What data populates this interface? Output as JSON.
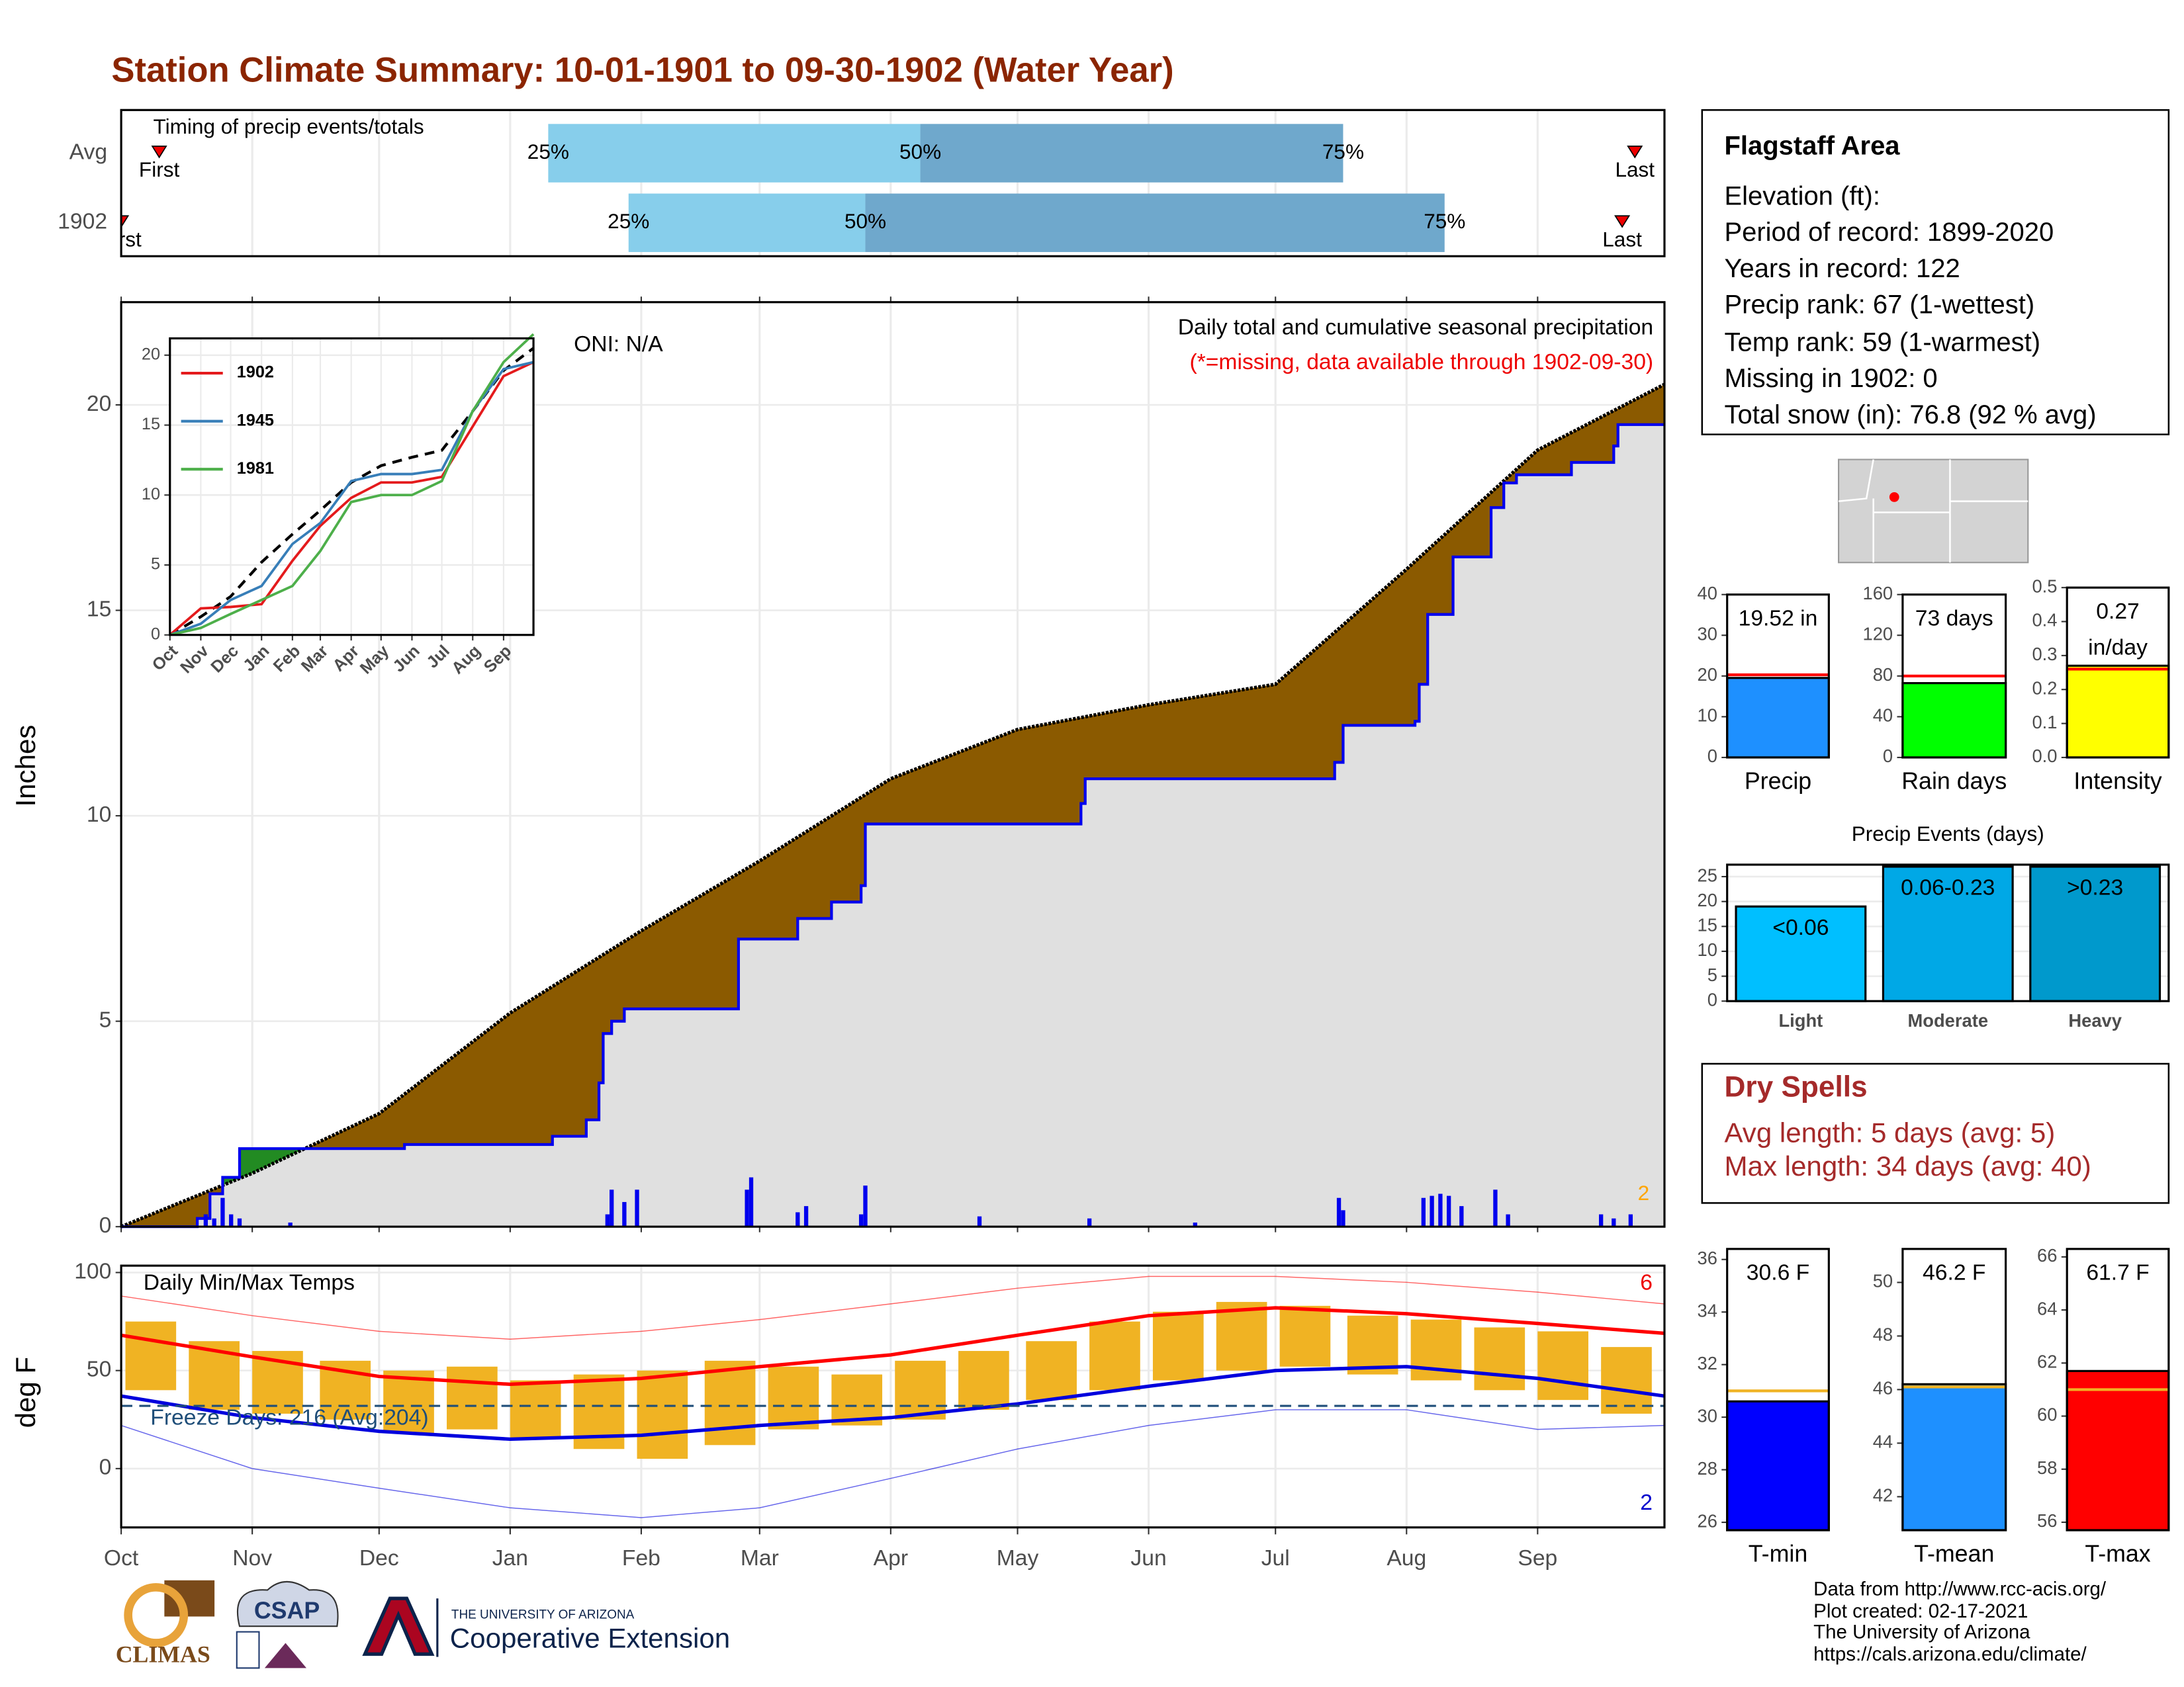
{
  "title": "Station Climate Summary: 10-01-1901 to 09-30-1902 (Water Year)",
  "chart_data": [
    {
      "type": "range_bar",
      "title": "Timing of precip events/totals",
      "categories": [
        "Avg",
        "1902"
      ],
      "first": [
        9,
        0
      ],
      "q25": [
        101,
        120
      ],
      "q50": [
        189,
        176
      ],
      "q75": [
        289,
        313
      ],
      "last": [
        358,
        355
      ],
      "labels": {
        "first": "First",
        "last": "Last",
        "q25": "25%",
        "q50": "50%",
        "q75": "75%"
      },
      "colors": [
        "#87ceeb",
        "#6fa8cc"
      ],
      "marker_color": "#ee0000",
      "xlim": [
        0,
        365
      ],
      "xticks": [
        0,
        31,
        61,
        92,
        123,
        151,
        182,
        212,
        243,
        273,
        304,
        335
      ],
      "grid": true
    },
    {
      "type": "area",
      "ylabel": "Inches",
      "annotations": [
        "ONI: N/A",
        "Daily total and cumulative seasonal precipitation",
        "(*=missing, data available through 1902-09-30)"
      ],
      "record_count": 2,
      "xlim": [
        0,
        365
      ],
      "ylim": [
        0,
        22.5
      ],
      "yticks": [
        0,
        5,
        10,
        15,
        20
      ],
      "xticks": [
        0,
        31,
        61,
        92,
        123,
        151,
        182,
        212,
        243,
        273,
        304,
        335
      ],
      "grid": true,
      "average": {
        "x": [
          0,
          31,
          61,
          92,
          123,
          151,
          182,
          212,
          243,
          273,
          304,
          335,
          365
        ],
        "values": [
          0,
          1.3,
          2.75,
          5.2,
          7.2,
          8.9,
          10.9,
          12.1,
          12.7,
          13.2,
          16.0,
          18.9,
          20.5
        ],
        "color": "#8b5a00"
      },
      "year": {
        "x": [
          0,
          18,
          18,
          21,
          21,
          24,
          24,
          28,
          28,
          67,
          67,
          102,
          102,
          110,
          110,
          113,
          113,
          114,
          114,
          116,
          116,
          119,
          119,
          146,
          146,
          160,
          160,
          168,
          168,
          175,
          175,
          176,
          176,
          227,
          227,
          228,
          228,
          287,
          287,
          289,
          289,
          306,
          306,
          307,
          307,
          309,
          309,
          315,
          315,
          324,
          324,
          327,
          327,
          330,
          330,
          343,
          343,
          353,
          353,
          354,
          354,
          365
        ],
        "values": [
          0,
          0,
          0.2,
          0.2,
          0.8,
          0.8,
          1.2,
          1.2,
          1.9,
          1.9,
          2.0,
          2.0,
          2.2,
          2.2,
          2.6,
          2.6,
          3.5,
          3.5,
          4.7,
          4.7,
          5.0,
          5.0,
          5.3,
          5.3,
          7.0,
          7.0,
          7.5,
          7.5,
          7.9,
          7.9,
          8.3,
          8.3,
          9.8,
          9.8,
          10.3,
          10.3,
          10.9,
          10.9,
          11.3,
          11.3,
          12.2,
          12.2,
          12.3,
          12.3,
          13.2,
          13.2,
          14.9,
          14.9,
          16.3,
          16.3,
          17.5,
          17.5,
          18.1,
          18.1,
          18.3,
          18.3,
          18.6,
          18.6,
          19.0,
          19.0,
          19.52,
          19.52
        ],
        "color": "#0000ee"
      },
      "above_color": "#228b22",
      "below_color": "#e0e0e0",
      "daily": {
        "x": [
          20,
          22,
          24,
          26,
          28,
          40,
          115,
          116,
          119,
          122,
          148,
          149,
          160,
          162,
          175,
          176,
          203,
          229,
          254,
          288,
          289,
          308,
          310,
          312,
          314,
          317,
          325,
          328,
          350,
          353,
          357
        ],
        "values": [
          0.3,
          0.2,
          0.7,
          0.3,
          0.2,
          0.1,
          0.3,
          0.9,
          0.6,
          0.9,
          0.9,
          1.2,
          0.35,
          0.5,
          0.3,
          1.0,
          0.25,
          0.2,
          0.1,
          0.7,
          0.4,
          0.7,
          0.75,
          0.8,
          0.75,
          0.5,
          0.9,
          0.3,
          0.3,
          0.2,
          0.3
        ],
        "color": "#0000ee"
      }
    },
    {
      "type": "line",
      "x": [
        0,
        31,
        61,
        92,
        123,
        151,
        182,
        212,
        243,
        273,
        304,
        335,
        365
      ],
      "xlim": [
        0,
        365
      ],
      "ylim": [
        0,
        21.2
      ],
      "yticks": [
        0,
        5,
        10,
        15,
        20
      ],
      "xticks": [
        {
          "value": 0,
          "label": "Oct"
        },
        {
          "value": 31,
          "label": "Nov"
        },
        {
          "value": 61,
          "label": "Dec"
        },
        {
          "value": 92,
          "label": "Jan"
        },
        {
          "value": 123,
          "label": "Feb"
        },
        {
          "value": 151,
          "label": "Mar"
        },
        {
          "value": 182,
          "label": "Apr"
        },
        {
          "value": 212,
          "label": "May"
        },
        {
          "value": 243,
          "label": "Jun"
        },
        {
          "value": 273,
          "label": "Jul"
        },
        {
          "value": 304,
          "label": "Aug"
        },
        {
          "value": 335,
          "label": "Sep"
        }
      ],
      "average": {
        "values": [
          0,
          1.3,
          2.75,
          5.2,
          7.2,
          8.9,
          10.9,
          12.1,
          12.7,
          13.2,
          16.0,
          18.9,
          20.5
        ],
        "color": "#000000"
      },
      "series": [
        {
          "name": "1902",
          "color": "#e41a1c",
          "values": [
            0,
            1.9,
            2.0,
            2.2,
            5.3,
            7.8,
            9.8,
            10.9,
            10.9,
            11.3,
            14.9,
            18.5,
            19.5
          ]
        },
        {
          "name": "1945",
          "color": "#377eb8",
          "values": [
            0,
            0.8,
            2.5,
            3.5,
            6.5,
            8.0,
            11.0,
            11.5,
            11.5,
            11.8,
            16.0,
            19.0,
            19.5
          ]
        },
        {
          "name": "1981",
          "color": "#4daf4a",
          "values": [
            0,
            0.5,
            1.5,
            2.5,
            3.5,
            6.0,
            9.5,
            10.0,
            10.0,
            11.0,
            16.0,
            19.5,
            21.5
          ]
        }
      ]
    },
    {
      "type": "bar",
      "categories": [
        "Precip"
      ],
      "values": [
        19.52
      ],
      "value_labels": [
        "19.52 in"
      ],
      "color": "#1e90ff",
      "average": 20.3,
      "average_color": "#ff0000",
      "ylim": [
        0,
        40
      ],
      "yticks": [
        0,
        10,
        20,
        30,
        40
      ]
    },
    {
      "type": "bar",
      "categories": [
        "Rain days"
      ],
      "values": [
        73
      ],
      "value_labels": [
        "73 days"
      ],
      "color": "#00ff00",
      "average": 80,
      "average_color": "#ff0000",
      "ylim": [
        0,
        160
      ],
      "yticks": [
        0,
        40,
        80,
        120,
        160
      ]
    },
    {
      "type": "bar",
      "categories": [
        "Intensity"
      ],
      "values": [
        0.27
      ],
      "value_labels": [
        "0.27"
      ],
      "unit": "in/day",
      "color": "#ffff00",
      "average": 0.26,
      "average_color": "#ff0000",
      "ylim": [
        0,
        0.5
      ],
      "yticks": [
        {
          "value": 0,
          "label": "0.0"
        },
        0.1,
        0.2,
        0.3,
        0.4,
        0.5
      ]
    },
    {
      "type": "bar",
      "title": "Precip Events (days)",
      "categories": [
        "Light",
        "Moderate",
        "Heavy"
      ],
      "values": [
        19,
        27,
        27
      ],
      "value_labels": [
        "<0.06",
        "0.06-0.23",
        ">0.23"
      ],
      "colors": [
        "#00bfff",
        "#00a8e6",
        "#0099cc"
      ],
      "ylim": [
        0,
        27.4
      ],
      "yticks": [
        0,
        5,
        10,
        15,
        20,
        25
      ],
      "grid": true
    },
    {
      "type": "temperature",
      "title": "Daily Min/Max Temps",
      "ylabel": "deg F",
      "annotation": "Freeze Days: 216 (Avg:204)",
      "record_high_count": 6,
      "record_low_count": 2,
      "freeze_line": 32,
      "xlim": [
        0,
        365
      ],
      "ylim": [
        -30,
        103.5
      ],
      "yticks": [
        0,
        50,
        100
      ],
      "grid": true,
      "xticks": [
        {
          "value": 0,
          "label": "Oct"
        },
        {
          "value": 31,
          "label": "Nov"
        },
        {
          "value": 61,
          "label": "Dec"
        },
        {
          "value": 92,
          "label": "Jan"
        },
        {
          "value": 123,
          "label": "Feb"
        },
        {
          "value": 151,
          "label": "Mar"
        },
        {
          "value": 182,
          "label": "Apr"
        },
        {
          "value": 212,
          "label": "May"
        },
        {
          "value": 243,
          "label": "Jun"
        },
        {
          "value": 273,
          "label": "Jul"
        },
        {
          "value": 304,
          "label": "Aug"
        },
        {
          "value": 335,
          "label": "Sep"
        }
      ],
      "x": [
        7,
        22,
        37,
        53,
        68,
        83,
        98,
        113,
        128,
        144,
        159,
        174,
        189,
        204,
        220,
        235,
        250,
        265,
        280,
        296,
        311,
        326,
        341,
        356
      ],
      "max": [
        75,
        65,
        60,
        55,
        50,
        52,
        45,
        48,
        50,
        55,
        52,
        48,
        55,
        60,
        65,
        75,
        80,
        85,
        83,
        78,
        76,
        72,
        70,
        62
      ],
      "min": [
        40,
        30,
        28,
        25,
        18,
        20,
        15,
        10,
        5,
        12,
        20,
        22,
        25,
        30,
        35,
        40,
        45,
        50,
        52,
        48,
        45,
        40,
        35,
        28
      ],
      "bar_color": "#f0b323",
      "normals": {
        "x": [
          0,
          31,
          61,
          92,
          123,
          151,
          182,
          212,
          243,
          273,
          304,
          335,
          365
        ],
        "max": [
          68,
          57,
          47,
          43,
          46,
          52,
          58,
          68,
          78,
          82,
          79,
          74,
          69
        ],
        "min": [
          37,
          26,
          19,
          15,
          17,
          22,
          26,
          33,
          42,
          50,
          52,
          46,
          37
        ],
        "record_max": [
          88,
          78,
          70,
          66,
          70,
          76,
          84,
          92,
          98,
          98,
          95,
          90,
          84
        ],
        "record_min": [
          22,
          0,
          -10,
          -20,
          -25,
          -20,
          -5,
          10,
          22,
          30,
          30,
          20,
          22
        ],
        "max_color": "#ff0000",
        "min_color": "#0000dd"
      }
    },
    {
      "type": "bar",
      "categories": [
        "T-min"
      ],
      "values": [
        30.6
      ],
      "value_labels": [
        "30.6 F"
      ],
      "color": "#0000ff",
      "average": 31.0,
      "average_color": "#f0b323",
      "ylim": [
        25.7,
        36.4
      ],
      "yticks": [
        26,
        28,
        30,
        32,
        34,
        36
      ]
    },
    {
      "type": "bar",
      "categories": [
        "T-mean"
      ],
      "values": [
        46.2
      ],
      "value_labels": [
        "46.2 F"
      ],
      "color": "#1e90ff",
      "average": 46.1,
      "average_color": "#f0b323",
      "ylim": [
        40.75,
        51.25
      ],
      "yticks": [
        42,
        44,
        46,
        48,
        50
      ]
    },
    {
      "type": "bar",
      "categories": [
        "T-max"
      ],
      "values": [
        61.7
      ],
      "value_labels": [
        "61.7 F"
      ],
      "color": "#ff0000",
      "average": 61.0,
      "average_color": "#f0b323",
      "ylim": [
        55.7,
        66.3
      ],
      "yticks": [
        56,
        58,
        60,
        62,
        64,
        66
      ]
    }
  ],
  "info": {
    "title": "Flagstaff Area",
    "lines": [
      "Elevation (ft):",
      "Period of record: 1899-2020",
      "Years in record: 122",
      "Precip rank: 67 (1-wettest)",
      "Temp rank: 59 (1-warmest)",
      "Missing in 1902: 0",
      "Total snow (in): 76.8 (92 % avg)"
    ]
  },
  "dry_spells": {
    "title": "Dry Spells",
    "lines": [
      "Avg length: 5 days (avg: 5)",
      "Max length: 34 days (avg: 40)"
    ]
  },
  "footer": [
    "Data from http://www.rcc-acis.org/",
    "Plot created: 02-17-2021",
    "The University of Arizona",
    "https://cals.arizona.edu/climate/"
  ],
  "logos": {
    "climas": "CLIMAS",
    "csap": "CSAP",
    "ua": "THE UNIVERSITY OF ARIZONA",
    "extension": "Cooperative Extension"
  }
}
